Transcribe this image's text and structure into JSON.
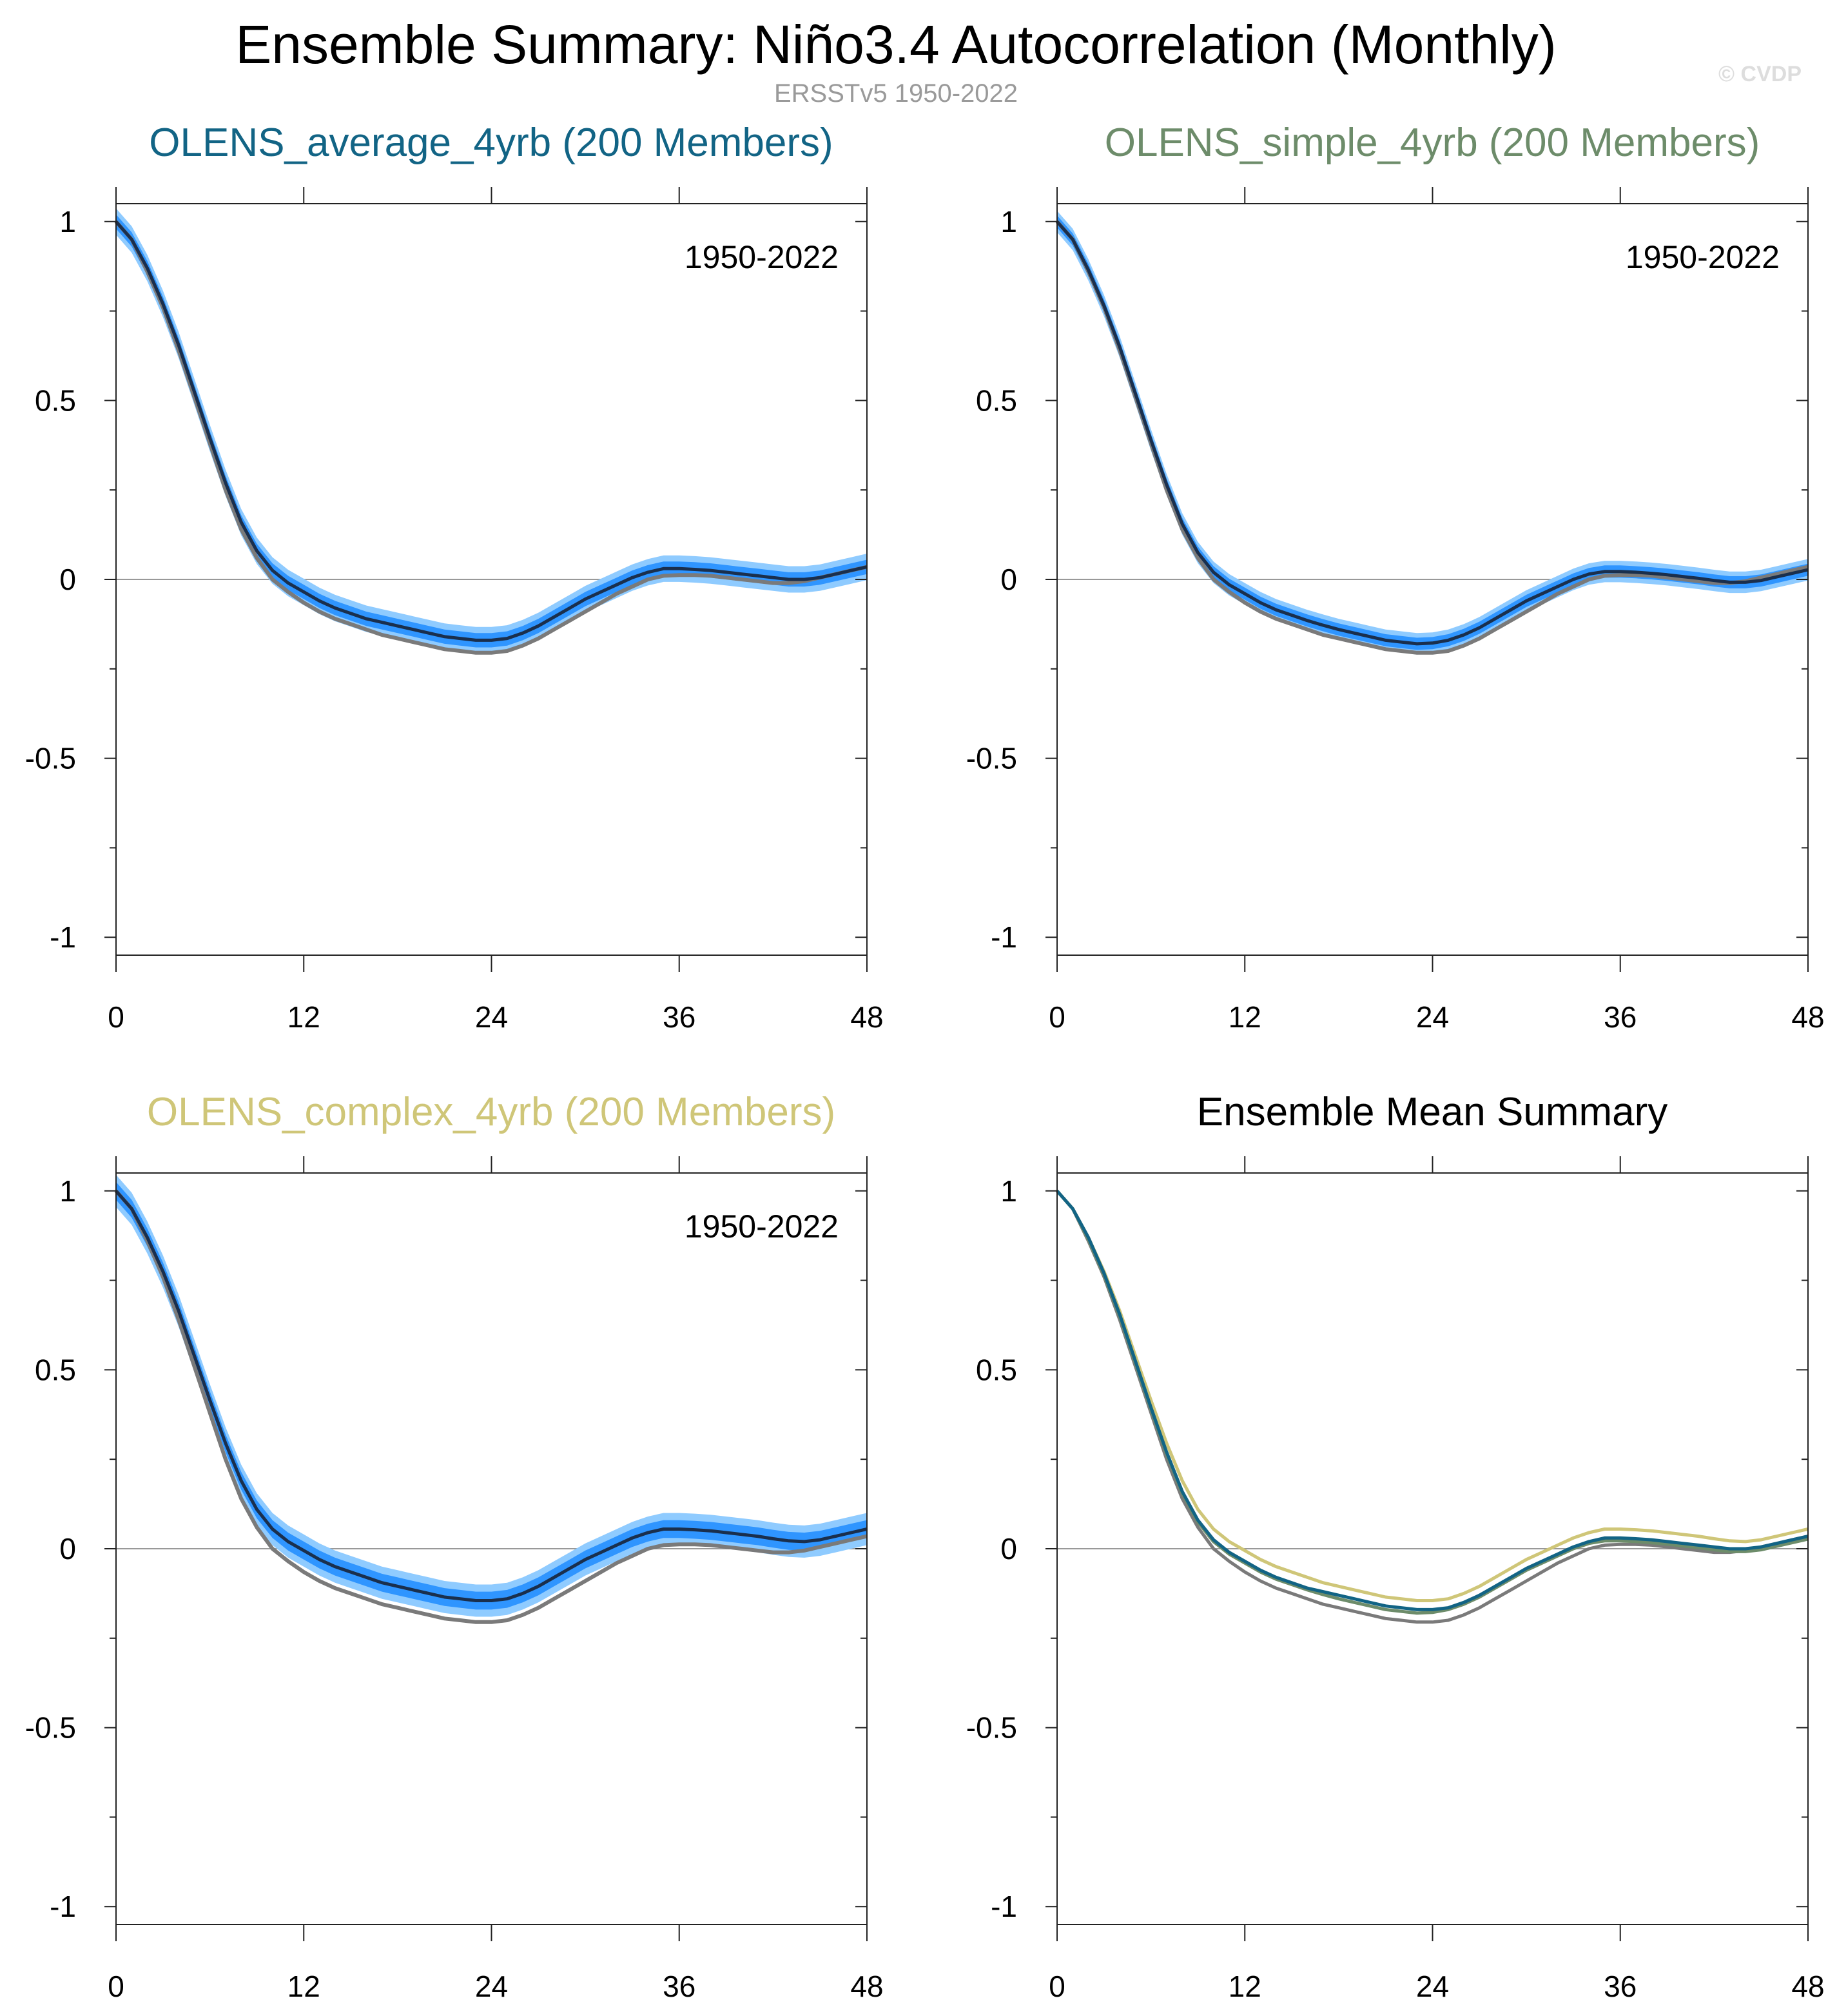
{
  "title": "Ensemble Summary: Niño3.4 Autocorrelation (Monthly)",
  "subtitle": "ERSSTv5 1950-2022",
  "watermark": "© CVDP",
  "colors": {
    "obs": "#7a7a7a",
    "spread_outer": "#8fcbff",
    "spread_inner": "#2f95ff",
    "ens_mean": "#1a2f4d",
    "average": "#126485",
    "simple": "#6d8c6a",
    "complex": "#cfc678"
  },
  "chart_data": [
    {
      "type": "line",
      "title": "OLENS_average_4yrb (200 Members)",
      "title_color": "#126485",
      "period": "1950-2022",
      "x_ticks": [
        0,
        12,
        24,
        36,
        48
      ],
      "y_ticks": [
        1,
        0.5,
        0,
        -0.5,
        -1
      ],
      "y_tick_labels": [
        "1",
        "0.5",
        "0",
        "-0.5",
        "-1"
      ],
      "xlim": [
        0,
        48
      ],
      "ylim": [
        -1.05,
        1.05
      ],
      "lag_months": [
        0,
        1,
        2,
        3,
        4,
        5,
        6,
        7,
        8,
        9,
        10,
        11,
        12,
        13,
        14,
        15,
        16,
        17,
        18,
        19,
        20,
        21,
        22,
        23,
        24,
        25,
        26,
        27,
        28,
        29,
        30,
        31,
        32,
        33,
        34,
        35,
        36,
        37,
        38,
        39,
        40,
        41,
        42,
        43,
        44,
        45,
        46,
        47,
        48
      ],
      "observed": [
        1,
        0.95,
        0.86,
        0.76,
        0.64,
        0.51,
        0.38,
        0.25,
        0.14,
        0.06,
        0.0,
        -0.035,
        -0.065,
        -0.09,
        -0.11,
        -0.125,
        -0.14,
        -0.155,
        -0.165,
        -0.175,
        -0.185,
        -0.195,
        -0.2,
        -0.205,
        -0.205,
        -0.2,
        -0.185,
        -0.165,
        -0.14,
        -0.115,
        -0.09,
        -0.065,
        -0.04,
        -0.02,
        0.0,
        0.01,
        0.012,
        0.012,
        0.01,
        0.005,
        0.0,
        -0.005,
        -0.01,
        -0.01,
        -0.005,
        0.005,
        0.015,
        0.025,
        0.035
      ],
      "ens_mean": [
        1,
        0.95,
        0.87,
        0.77,
        0.655,
        0.525,
        0.395,
        0.27,
        0.16,
        0.08,
        0.025,
        -0.01,
        -0.035,
        -0.06,
        -0.08,
        -0.095,
        -0.11,
        -0.12,
        -0.13,
        -0.14,
        -0.15,
        -0.16,
        -0.165,
        -0.17,
        -0.17,
        -0.165,
        -0.15,
        -0.13,
        -0.105,
        -0.08,
        -0.055,
        -0.035,
        -0.015,
        0.005,
        0.02,
        0.03,
        0.03,
        0.028,
        0.025,
        0.02,
        0.015,
        0.01,
        0.005,
        0.0,
        0.0,
        0.005,
        0.015,
        0.025,
        0.035
      ],
      "inner_half_width": 0.02,
      "outer_half_width": 0.037
    },
    {
      "type": "line",
      "title": "OLENS_simple_4yrb (200 Members)",
      "title_color": "#6d8c6a",
      "period": "1950-2022",
      "x_ticks": [
        0,
        12,
        24,
        36,
        48
      ],
      "y_ticks": [
        1,
        0.5,
        0,
        -0.5,
        -1
      ],
      "y_tick_labels": [
        "1",
        "0.5",
        "0",
        "-0.5",
        "-1"
      ],
      "xlim": [
        0,
        48
      ],
      "ylim": [
        -1.05,
        1.05
      ],
      "lag_months": [
        0,
        1,
        2,
        3,
        4,
        5,
        6,
        7,
        8,
        9,
        10,
        11,
        12,
        13,
        14,
        15,
        16,
        17,
        18,
        19,
        20,
        21,
        22,
        23,
        24,
        25,
        26,
        27,
        28,
        29,
        30,
        31,
        32,
        33,
        34,
        35,
        36,
        37,
        38,
        39,
        40,
        41,
        42,
        43,
        44,
        45,
        46,
        47,
        48
      ],
      "observed": [
        1,
        0.95,
        0.86,
        0.76,
        0.64,
        0.51,
        0.38,
        0.25,
        0.14,
        0.06,
        0.0,
        -0.035,
        -0.065,
        -0.09,
        -0.11,
        -0.125,
        -0.14,
        -0.155,
        -0.165,
        -0.175,
        -0.185,
        -0.195,
        -0.2,
        -0.205,
        -0.205,
        -0.2,
        -0.185,
        -0.165,
        -0.14,
        -0.115,
        -0.09,
        -0.065,
        -0.04,
        -0.02,
        0.0,
        0.01,
        0.012,
        0.012,
        0.01,
        0.005,
        0.0,
        -0.005,
        -0.01,
        -0.01,
        -0.005,
        0.005,
        0.015,
        0.025,
        0.035
      ],
      "ens_mean": [
        1,
        0.95,
        0.865,
        0.765,
        0.65,
        0.52,
        0.39,
        0.265,
        0.155,
        0.075,
        0.02,
        -0.015,
        -0.04,
        -0.065,
        -0.085,
        -0.1,
        -0.115,
        -0.128,
        -0.14,
        -0.15,
        -0.16,
        -0.17,
        -0.175,
        -0.18,
        -0.178,
        -0.17,
        -0.155,
        -0.135,
        -0.11,
        -0.085,
        -0.06,
        -0.04,
        -0.02,
        0.0,
        0.015,
        0.022,
        0.022,
        0.02,
        0.017,
        0.013,
        0.008,
        0.003,
        -0.003,
        -0.008,
        -0.008,
        -0.003,
        0.007,
        0.017,
        0.027
      ],
      "inner_half_width": 0.017,
      "outer_half_width": 0.03
    },
    {
      "type": "line",
      "title": "OLENS_complex_4yrb (200 Members)",
      "title_color": "#cfc678",
      "period": "1950-2022",
      "x_ticks": [
        0,
        12,
        24,
        36,
        48
      ],
      "y_ticks": [
        1,
        0.5,
        0,
        -0.5,
        -1
      ],
      "y_tick_labels": [
        "1",
        "0.5",
        "0",
        "-0.5",
        "-1"
      ],
      "xlim": [
        0,
        48
      ],
      "ylim": [
        -1.05,
        1.05
      ],
      "lag_months": [
        0,
        1,
        2,
        3,
        4,
        5,
        6,
        7,
        8,
        9,
        10,
        11,
        12,
        13,
        14,
        15,
        16,
        17,
        18,
        19,
        20,
        21,
        22,
        23,
        24,
        25,
        26,
        27,
        28,
        29,
        30,
        31,
        32,
        33,
        34,
        35,
        36,
        37,
        38,
        39,
        40,
        41,
        42,
        43,
        44,
        45,
        46,
        47,
        48
      ],
      "observed": [
        1,
        0.95,
        0.86,
        0.76,
        0.64,
        0.51,
        0.38,
        0.25,
        0.14,
        0.06,
        0.0,
        -0.035,
        -0.065,
        -0.09,
        -0.11,
        -0.125,
        -0.14,
        -0.155,
        -0.165,
        -0.175,
        -0.185,
        -0.195,
        -0.2,
        -0.205,
        -0.205,
        -0.2,
        -0.185,
        -0.165,
        -0.14,
        -0.115,
        -0.09,
        -0.065,
        -0.04,
        -0.02,
        0.0,
        0.01,
        0.012,
        0.012,
        0.01,
        0.005,
        0.0,
        -0.005,
        -0.01,
        -0.01,
        -0.005,
        0.005,
        0.015,
        0.025,
        0.035
      ],
      "ens_mean": [
        1,
        0.95,
        0.87,
        0.775,
        0.665,
        0.54,
        0.415,
        0.295,
        0.19,
        0.11,
        0.055,
        0.02,
        -0.005,
        -0.03,
        -0.05,
        -0.065,
        -0.08,
        -0.095,
        -0.105,
        -0.115,
        -0.125,
        -0.135,
        -0.14,
        -0.145,
        -0.145,
        -0.14,
        -0.125,
        -0.105,
        -0.08,
        -0.055,
        -0.03,
        -0.01,
        0.01,
        0.03,
        0.045,
        0.055,
        0.055,
        0.053,
        0.05,
        0.045,
        0.04,
        0.035,
        0.028,
        0.022,
        0.02,
        0.025,
        0.035,
        0.045,
        0.055
      ],
      "inner_half_width": 0.025,
      "outer_half_width": 0.045
    },
    {
      "type": "line",
      "title": "Ensemble Mean Summary",
      "title_color": "#000000",
      "x_ticks": [
        0,
        12,
        24,
        36,
        48
      ],
      "y_ticks": [
        1,
        0.5,
        0,
        -0.5,
        -1
      ],
      "y_tick_labels": [
        "1",
        "0.5",
        "0",
        "-0.5",
        "-1"
      ],
      "xlim": [
        0,
        48
      ],
      "ylim": [
        -1.05,
        1.05
      ],
      "lag_months": [
        0,
        1,
        2,
        3,
        4,
        5,
        6,
        7,
        8,
        9,
        10,
        11,
        12,
        13,
        14,
        15,
        16,
        17,
        18,
        19,
        20,
        21,
        22,
        23,
        24,
        25,
        26,
        27,
        28,
        29,
        30,
        31,
        32,
        33,
        34,
        35,
        36,
        37,
        38,
        39,
        40,
        41,
        42,
        43,
        44,
        45,
        46,
        47,
        48
      ],
      "series": [
        {
          "name": "ERSSTv5",
          "color": "#7a7a7a",
          "values": [
            1,
            0.95,
            0.86,
            0.76,
            0.64,
            0.51,
            0.38,
            0.25,
            0.14,
            0.06,
            0.0,
            -0.035,
            -0.065,
            -0.09,
            -0.11,
            -0.125,
            -0.14,
            -0.155,
            -0.165,
            -0.175,
            -0.185,
            -0.195,
            -0.2,
            -0.205,
            -0.205,
            -0.2,
            -0.185,
            -0.165,
            -0.14,
            -0.115,
            -0.09,
            -0.065,
            -0.04,
            -0.02,
            0.0,
            0.01,
            0.012,
            0.012,
            0.01,
            0.005,
            0.0,
            -0.005,
            -0.01,
            -0.01,
            -0.005,
            0.005,
            0.015,
            0.025,
            0.035
          ]
        },
        {
          "name": "OLENS_complex_4yrb",
          "color": "#cfc678",
          "values": [
            1,
            0.95,
            0.87,
            0.775,
            0.665,
            0.54,
            0.415,
            0.295,
            0.19,
            0.11,
            0.055,
            0.02,
            -0.005,
            -0.03,
            -0.05,
            -0.065,
            -0.08,
            -0.095,
            -0.105,
            -0.115,
            -0.125,
            -0.135,
            -0.14,
            -0.145,
            -0.145,
            -0.14,
            -0.125,
            -0.105,
            -0.08,
            -0.055,
            -0.03,
            -0.01,
            0.01,
            0.03,
            0.045,
            0.055,
            0.055,
            0.053,
            0.05,
            0.045,
            0.04,
            0.035,
            0.028,
            0.022,
            0.02,
            0.025,
            0.035,
            0.045,
            0.055
          ]
        },
        {
          "name": "OLENS_simple_4yrb",
          "color": "#6d8c6a",
          "values": [
            1,
            0.95,
            0.865,
            0.765,
            0.65,
            0.52,
            0.39,
            0.265,
            0.155,
            0.075,
            0.02,
            -0.015,
            -0.04,
            -0.065,
            -0.085,
            -0.1,
            -0.115,
            -0.128,
            -0.14,
            -0.15,
            -0.16,
            -0.17,
            -0.175,
            -0.18,
            -0.178,
            -0.17,
            -0.155,
            -0.135,
            -0.11,
            -0.085,
            -0.06,
            -0.04,
            -0.02,
            0.0,
            0.015,
            0.022,
            0.022,
            0.02,
            0.017,
            0.013,
            0.008,
            0.003,
            -0.003,
            -0.008,
            -0.008,
            -0.003,
            0.007,
            0.017,
            0.027
          ]
        },
        {
          "name": "OLENS_average_4yrb",
          "color": "#126485",
          "values": [
            1,
            0.95,
            0.87,
            0.77,
            0.655,
            0.525,
            0.395,
            0.27,
            0.16,
            0.08,
            0.025,
            -0.01,
            -0.035,
            -0.06,
            -0.08,
            -0.095,
            -0.11,
            -0.12,
            -0.13,
            -0.14,
            -0.15,
            -0.16,
            -0.165,
            -0.17,
            -0.17,
            -0.165,
            -0.15,
            -0.13,
            -0.105,
            -0.08,
            -0.055,
            -0.035,
            -0.015,
            0.005,
            0.02,
            0.03,
            0.03,
            0.028,
            0.025,
            0.02,
            0.015,
            0.01,
            0.005,
            0.0,
            0.0,
            0.005,
            0.015,
            0.025,
            0.035
          ]
        }
      ]
    }
  ]
}
